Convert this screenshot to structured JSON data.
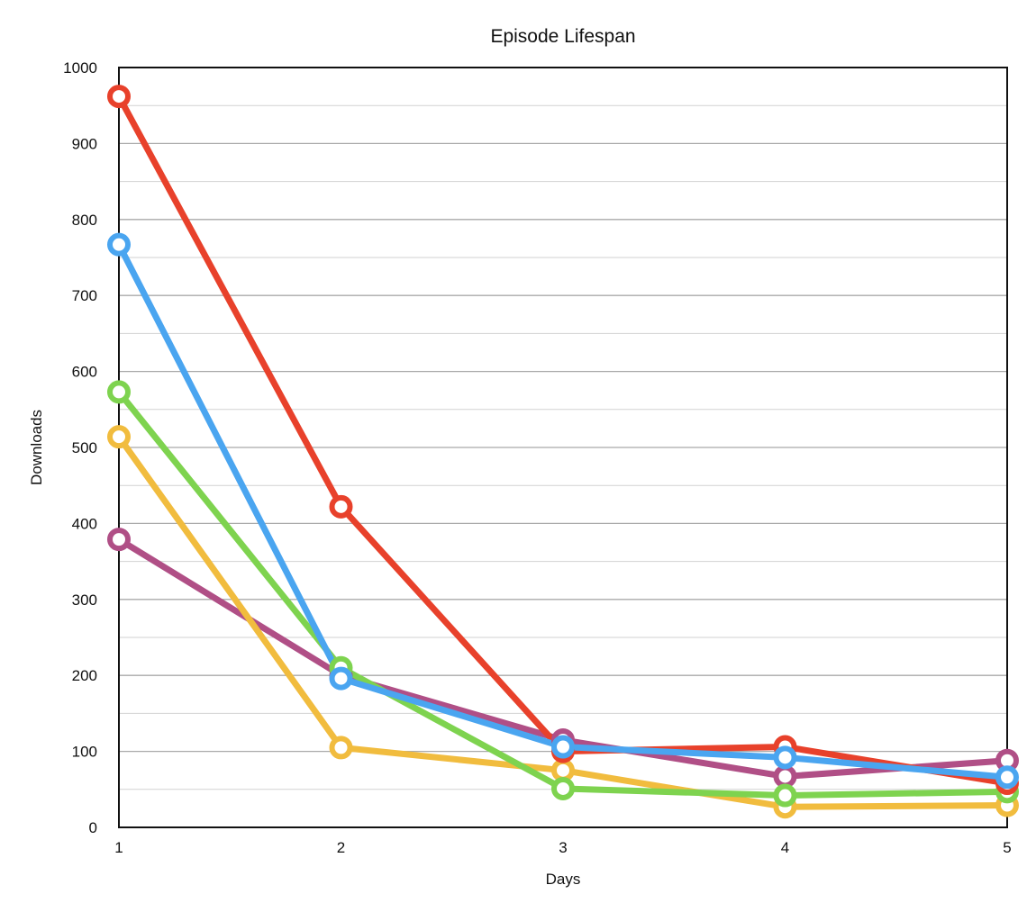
{
  "chart_data": {
    "type": "line",
    "title": "Episode Lifespan",
    "xlabel": "Days",
    "ylabel": "Downloads",
    "x": [
      1,
      2,
      3,
      4,
      5
    ],
    "xlim": [
      1,
      5
    ],
    "ylim": [
      0,
      1000
    ],
    "x_ticks": [
      "1",
      "2",
      "3",
      "4",
      "5"
    ],
    "y_ticks": [
      "0",
      "100",
      "200",
      "300",
      "400",
      "500",
      "600",
      "700",
      "800",
      "900",
      "1000"
    ],
    "grid": true,
    "legend": "none",
    "marker": "hollow-circle",
    "series": [
      {
        "values": [
          379,
          200,
          115,
          67,
          88
        ],
        "color": "#B04F86"
      },
      {
        "values": [
          514,
          105,
          75,
          27,
          29
        ],
        "color": "#F1BC3E"
      },
      {
        "values": [
          573,
          210,
          51,
          42,
          47
        ],
        "color": "#7ED34F"
      },
      {
        "values": [
          962,
          422,
          100,
          106,
          58
        ],
        "color": "#E8412B"
      },
      {
        "values": [
          767,
          196,
          106,
          92,
          66
        ],
        "color": "#4AA5F0"
      }
    ]
  }
}
